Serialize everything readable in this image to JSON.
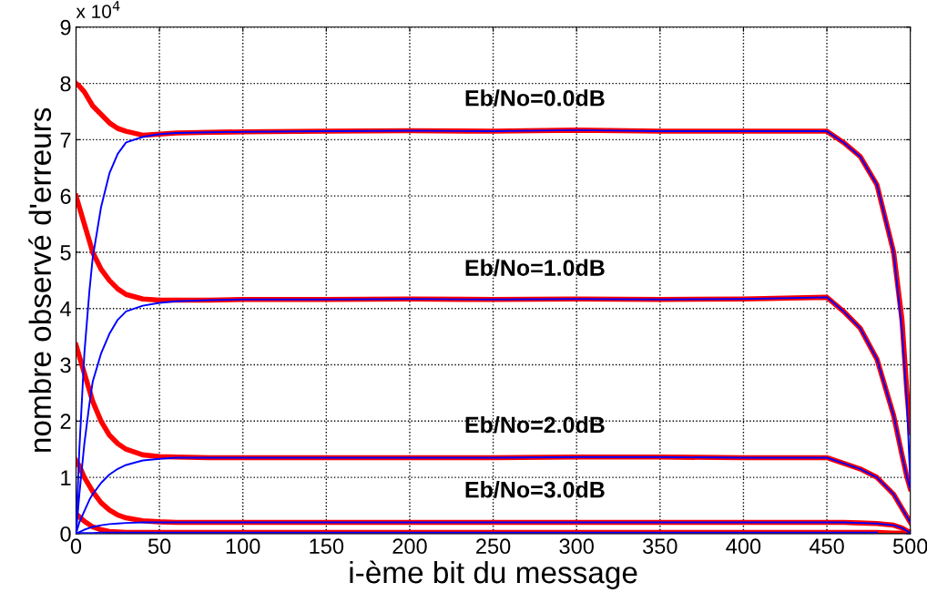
{
  "chart_data": {
    "type": "line",
    "xlabel": "i-ème bit du message",
    "ylabel": "nombre observé d'erreurs",
    "x": [
      0,
      2,
      5,
      8,
      10,
      15,
      20,
      25,
      30,
      40,
      50,
      60,
      80,
      100,
      150,
      200,
      250,
      300,
      350,
      400,
      450,
      460,
      470,
      480,
      490,
      495,
      498,
      500
    ],
    "series": [
      {
        "color": "#ff0000",
        "values": [
          8.0,
          7.95,
          7.85,
          7.7,
          7.6,
          7.45,
          7.3,
          7.2,
          7.15,
          7.08,
          7.1,
          7.12,
          7.13,
          7.14,
          7.15,
          7.16,
          7.15,
          7.17,
          7.15,
          7.15,
          7.15,
          6.95,
          6.7,
          6.2,
          5.0,
          3.8,
          2.5,
          1.8
        ]
      },
      {
        "color": "#ff0000",
        "values": [
          6.0,
          5.8,
          5.5,
          5.2,
          5.0,
          4.7,
          4.5,
          4.35,
          4.25,
          4.17,
          4.15,
          4.15,
          4.15,
          4.16,
          4.16,
          4.17,
          4.16,
          4.17,
          4.16,
          4.17,
          4.2,
          3.95,
          3.65,
          3.1,
          2.1,
          1.4,
          1.0,
          0.8
        ]
      },
      {
        "color": "#ff0000",
        "values": [
          3.35,
          3.15,
          2.85,
          2.55,
          2.35,
          2.0,
          1.75,
          1.6,
          1.5,
          1.4,
          1.37,
          1.36,
          1.35,
          1.35,
          1.35,
          1.35,
          1.35,
          1.36,
          1.36,
          1.35,
          1.35,
          1.25,
          1.15,
          1.0,
          0.7,
          0.45,
          0.3,
          0.2
        ]
      },
      {
        "color": "#ff0000",
        "values": [
          1.3,
          1.2,
          1.0,
          0.85,
          0.75,
          0.55,
          0.42,
          0.33,
          0.28,
          0.23,
          0.21,
          0.2,
          0.2,
          0.2,
          0.2,
          0.2,
          0.2,
          0.2,
          0.2,
          0.2,
          0.2,
          0.2,
          0.19,
          0.18,
          0.15,
          0.1,
          0.05,
          0.03
        ]
      },
      {
        "color": "#ff0000",
        "values": [
          0.35,
          0.3,
          0.22,
          0.16,
          0.12,
          0.07,
          0.04,
          0.03,
          0.02,
          0.02,
          0.02,
          0.02,
          0.02,
          0.02,
          0.02,
          0.02,
          0.02,
          0.02,
          0.02,
          0.02,
          0.02,
          0.02,
          0.02,
          0.02,
          0.01,
          0.01,
          0.0,
          0.0
        ]
      },
      {
        "color": "#0000ff",
        "values": [
          0,
          1.5,
          3.2,
          4.3,
          4.9,
          5.8,
          6.4,
          6.75,
          6.95,
          7.05,
          7.1,
          7.12,
          7.13,
          7.14,
          7.15,
          7.16,
          7.15,
          7.17,
          7.15,
          7.15,
          7.15,
          6.95,
          6.7,
          6.2,
          5.0,
          3.6,
          2.3,
          0.9
        ]
      },
      {
        "color": "#0000ff",
        "values": [
          0,
          0.7,
          1.6,
          2.3,
          2.7,
          3.2,
          3.55,
          3.8,
          3.95,
          4.05,
          4.1,
          4.13,
          4.15,
          4.16,
          4.16,
          4.17,
          4.16,
          4.17,
          4.16,
          4.17,
          4.2,
          3.95,
          3.65,
          3.1,
          2.1,
          1.4,
          1.0,
          0.8
        ]
      },
      {
        "color": "#0000ff",
        "values": [
          0,
          0.2,
          0.4,
          0.6,
          0.7,
          0.9,
          1.05,
          1.15,
          1.22,
          1.3,
          1.33,
          1.35,
          1.35,
          1.35,
          1.35,
          1.35,
          1.35,
          1.36,
          1.36,
          1.35,
          1.35,
          1.25,
          1.15,
          1.0,
          0.7,
          0.45,
          0.3,
          0.2
        ]
      },
      {
        "color": "#0000ff",
        "values": [
          0,
          0.03,
          0.07,
          0.1,
          0.12,
          0.15,
          0.17,
          0.18,
          0.19,
          0.2,
          0.2,
          0.2,
          0.2,
          0.2,
          0.2,
          0.2,
          0.2,
          0.2,
          0.2,
          0.2,
          0.2,
          0.2,
          0.19,
          0.18,
          0.15,
          0.1,
          0.05,
          0.0
        ]
      },
      {
        "color": "#0000ff",
        "values": [
          0,
          0.01,
          0.01,
          0.01,
          0.01,
          0.02,
          0.02,
          0.02,
          0.02,
          0.02,
          0.02,
          0.02,
          0.02,
          0.02,
          0.02,
          0.02,
          0.02,
          0.02,
          0.02,
          0.02,
          0.02,
          0.02,
          0.02,
          0.02,
          null,
          null,
          null,
          null
        ]
      }
    ],
    "xlim": [
      0,
      500
    ],
    "ylim": [
      0,
      9
    ],
    "xticks": [
      0,
      50,
      100,
      150,
      200,
      250,
      300,
      350,
      400,
      450,
      500
    ],
    "yticks": [
      0,
      1,
      2,
      3,
      4,
      5,
      6,
      7,
      8,
      9
    ],
    "grid": true,
    "marker": "none",
    "line_style": "solid",
    "annotations": [
      "Eb/No=0.0dB",
      "Eb/No=1.0dB",
      "Eb/No=2.0dB",
      "Eb/No=3.0dB",
      "x 10$^{4}$"
    ]
  }
}
